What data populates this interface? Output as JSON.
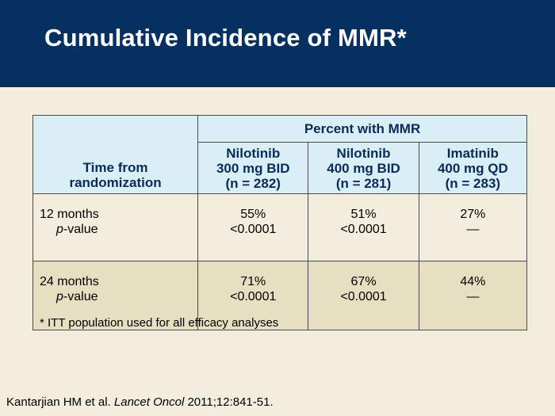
{
  "title": "Cumulative Incidence of MMR*",
  "table": {
    "group_header": "Percent with MMR",
    "row_header": [
      "Time from",
      "randomization"
    ],
    "columns": [
      {
        "line1": "Nilotinib",
        "line2": "300 mg BID",
        "line3": "(n = 282)"
      },
      {
        "line1": "Nilotinib",
        "line2": "400 mg BID",
        "line3": "(n = 281)"
      },
      {
        "line1": "Imatinib",
        "line2": "400 mg QD",
        "line3": "(n = 283)"
      }
    ],
    "rows": [
      {
        "time": "12 months",
        "p_label_italic": "p",
        "p_label_rest": "-value",
        "values": [
          {
            "pct": "55%",
            "p": "<0.0001"
          },
          {
            "pct": "51%",
            "p": "<0.0001"
          },
          {
            "pct": "27%",
            "p": "—"
          }
        ]
      },
      {
        "time": "24 months",
        "p_label_italic": "p",
        "p_label_rest": "-value",
        "values": [
          {
            "pct": "71%",
            "p": "<0.0001"
          },
          {
            "pct": "67%",
            "p": "<0.0001"
          },
          {
            "pct": "44%",
            "p": "—"
          }
        ]
      }
    ]
  },
  "footnote": "* ITT population used for all efficacy analyses",
  "citation": {
    "authors": "Kantarjian HM et al.",
    "journal": "Lancet Oncol",
    "ref": "2011;12:841-51."
  }
}
